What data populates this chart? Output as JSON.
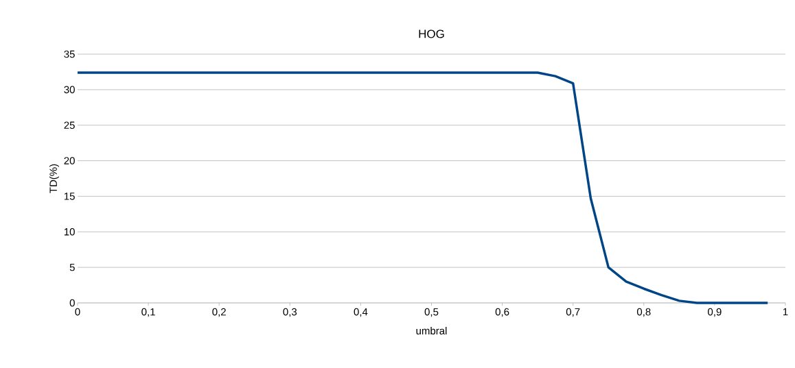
{
  "chart_data": {
    "type": "line",
    "title": "HOG",
    "xlabel": "umbral",
    "ylabel": "TD(%)",
    "x": [
      0,
      0.65,
      0.675,
      0.7,
      0.725,
      0.75,
      0.775,
      0.8,
      0.825,
      0.85,
      0.875,
      0.9,
      0.925,
      0.95,
      0.975
    ],
    "series": [
      {
        "color": "#004586",
        "values": [
          32.4,
          32.4,
          31.9,
          30.9,
          14.7,
          5.0,
          3.0,
          2.0,
          1.1,
          0.3,
          0,
          0,
          0,
          0,
          0
        ]
      }
    ],
    "xlim": [
      0,
      1
    ],
    "ylim": [
      0,
      35
    ],
    "xticks": [
      0,
      {
        "value": 0.1,
        "label": "0,1"
      },
      {
        "value": 0.2,
        "label": "0,2"
      },
      {
        "value": 0.3,
        "label": "0,3"
      },
      {
        "value": 0.4,
        "label": "0,4"
      },
      {
        "value": 0.5,
        "label": "0,5"
      },
      {
        "value": 0.6,
        "label": "0,6"
      },
      {
        "value": 0.7,
        "label": "0,7"
      },
      {
        "value": 0.8,
        "label": "0,8"
      },
      {
        "value": 0.9,
        "label": "0,9"
      },
      1
    ],
    "yticks": [
      0,
      5,
      10,
      15,
      20,
      25,
      30,
      35
    ],
    "grid": "y",
    "marker": "none",
    "line_style": "solid"
  }
}
